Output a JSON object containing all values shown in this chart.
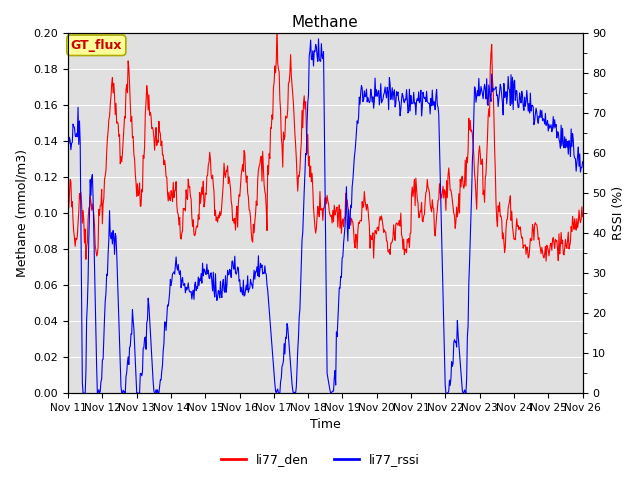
{
  "title": "Methane",
  "xlabel": "Time",
  "ylabel_left": "Methane (mmol/m3)",
  "ylabel_right": "RSSI (%)",
  "ylim_left": [
    0.0,
    0.2
  ],
  "ylim_right": [
    0,
    90
  ],
  "yticks_left": [
    0.0,
    0.02,
    0.04,
    0.06,
    0.08,
    0.1,
    0.12,
    0.14,
    0.16,
    0.18,
    0.2
  ],
  "yticks_right": [
    0,
    10,
    20,
    30,
    40,
    50,
    60,
    70,
    80,
    90
  ],
  "xtick_labels": [
    "Nov 11",
    "Nov 12",
    "Nov 13",
    "Nov 14",
    "Nov 15",
    "Nov 16",
    "Nov 17",
    "Nov 18",
    "Nov 19",
    "Nov 20",
    "Nov 21",
    "Nov 22",
    "Nov 23",
    "Nov 24",
    "Nov 25",
    "Nov 26"
  ],
  "color_red": "#FF0000",
  "color_blue": "#0000FF",
  "legend_label_red": "li77_den",
  "legend_label_blue": "li77_rssi",
  "annotation_text": "GT_flux",
  "annotation_bg": "#FFFF99",
  "annotation_border": "#AAAA00",
  "bg_color": "#E0E0E0",
  "grid_color": "#FFFFFF",
  "title_fontsize": 11,
  "axis_fontsize": 9,
  "tick_fontsize": 8
}
